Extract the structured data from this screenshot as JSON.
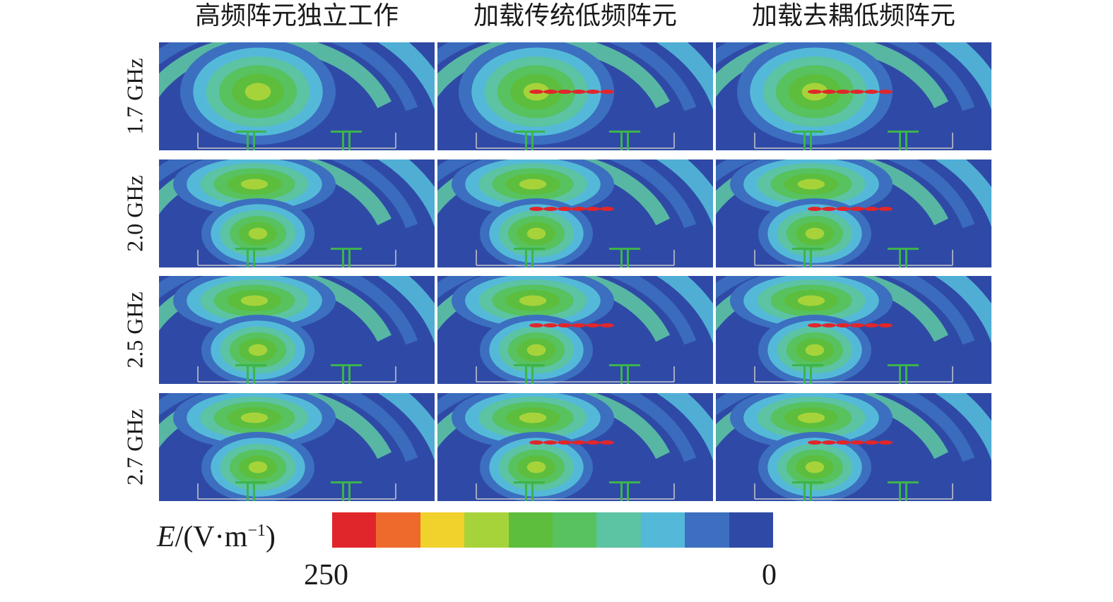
{
  "columns": [
    {
      "title": "高频阵元独立工作"
    },
    {
      "title": "加载传统低频阵元"
    },
    {
      "title": "加载去耦低频阵元"
    }
  ],
  "rows": [
    {
      "label": "1.7 GHz"
    },
    {
      "label": "2.0 GHz"
    },
    {
      "label": "2.5 GHz"
    },
    {
      "label": "2.7 GHz"
    }
  ],
  "colorbar": {
    "variable": "E",
    "unit_prefix": "/(V·m",
    "unit_exp": "−1",
    "unit_suffix": ")",
    "max_label": "250",
    "min_label": "0",
    "colors": [
      "#e1262b",
      "#ee6a2c",
      "#f1d12c",
      "#a7d33a",
      "#5cbe3c",
      "#57c25e",
      "#5cc3a3",
      "#54b9d9",
      "#3c6fc0",
      "#2f4aa6"
    ]
  },
  "colors": {
    "background_field": "#2f4aa6",
    "antenna_structure": "#3cb44b",
    "ground_plane": "#c8c8c8"
  }
}
